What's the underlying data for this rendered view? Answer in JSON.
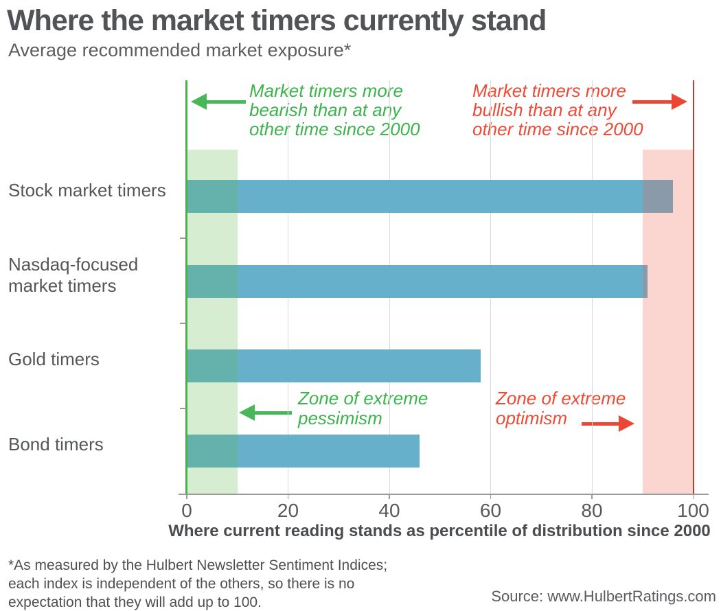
{
  "chart_data": {
    "type": "bar",
    "orientation": "horizontal",
    "title": "Where the market timers currently stand",
    "subtitle": "Average recommended market exposure*",
    "categories": [
      "Stock market timers",
      "Nasdaq-focused market timers",
      "Gold timers",
      "Bond timers"
    ],
    "category_display": [
      [
        "Stock market timers"
      ],
      [
        "Nasdaq-focused",
        "market timers"
      ],
      [
        "Gold timers"
      ],
      [
        "Bond timers"
      ]
    ],
    "values": [
      96,
      91,
      58,
      46
    ],
    "xlabel": "Where current reading stands as percentile of distribution since 2000",
    "xlim": [
      0,
      100
    ],
    "xticks": [
      0,
      20,
      40,
      60,
      80,
      100
    ],
    "grid": true,
    "legend": "none",
    "bar_color": "#67b0cc",
    "zones": [
      {
        "name": "extreme-pessimism",
        "range": [
          0,
          10
        ],
        "fill": "rgba(91,183,71,0.25)",
        "label_lines": [
          "Zone of extreme",
          "pessimism"
        ],
        "arrow": "left"
      },
      {
        "name": "extreme-optimism",
        "range": [
          90,
          100
        ],
        "fill": "rgba(240,92,69,0.26)",
        "label_lines": [
          "Zone of extreme",
          "optimism"
        ],
        "arrow": "right"
      }
    ],
    "annotations": [
      {
        "name": "bearish",
        "arrow": "left",
        "lines": [
          "Market timers more",
          "bearish than at any",
          "other time since 2000"
        ]
      },
      {
        "name": "bullish",
        "arrow": "right",
        "lines": [
          "Market timers more",
          "bullish than at any",
          "other time since 2000"
        ]
      }
    ]
  },
  "colors": {
    "green": "#3cb34d",
    "red": "#ee4a36",
    "green_arrow": "#47b757",
    "red_arrow": "#ea4734",
    "green_line": "#4cae51",
    "red_line": "#d3342a",
    "bar": "#67b0cc",
    "grid": "#dadada",
    "axis": "#9a9a9a"
  },
  "footer": {
    "footnote_lines": [
      "*As measured by the Hulbert Newsletter Sentiment Indices;",
      "each index is independent of the others, so there is no",
      "expectation that they will add up to 100."
    ],
    "source": "Source: www.HulbertRatings.com"
  }
}
